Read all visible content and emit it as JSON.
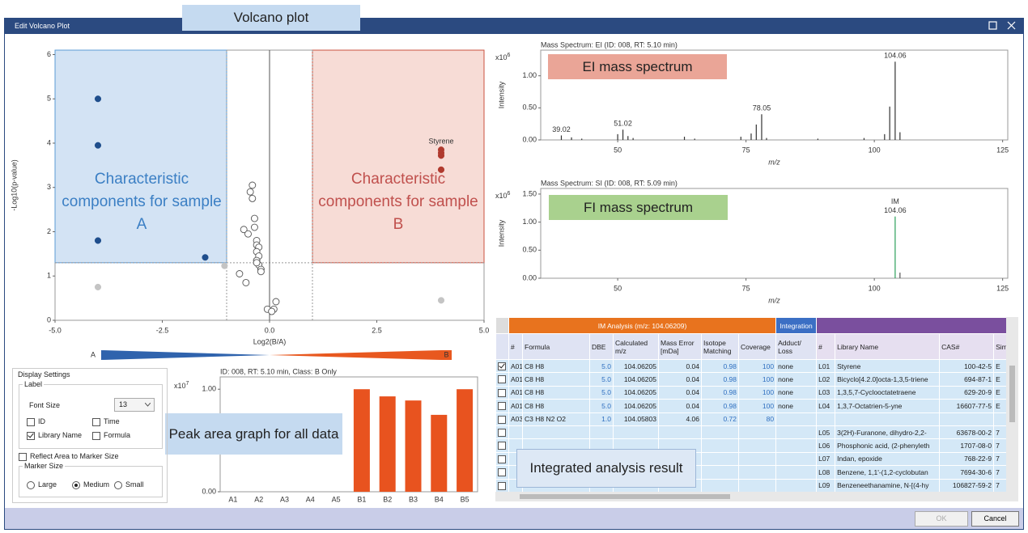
{
  "window": {
    "title": "Edit Volcano Plot"
  },
  "annotations": {
    "volcano": "Volcano plot",
    "ei": "EI mass spectrum",
    "fi": "FI mass spectrum",
    "sample_a": "Characteristic components for sample A",
    "sample_b": "Characteristic components for sample B",
    "peak_area": "Peak area graph for all data",
    "table": "Integrated analysis result"
  },
  "chart_data": [
    {
      "type": "scatter",
      "xlabel": "Log2(B/A)",
      "ylabel": "-Log10(p-value)",
      "xlim": [
        -5,
        5
      ],
      "ylim": [
        0,
        6.1
      ],
      "xticks": [
        {
          "value": -5,
          "label": "-5.0"
        },
        {
          "value": -2.5,
          "label": "-2.5"
        },
        {
          "value": 0,
          "label": "0.0"
        },
        {
          "value": 2.5,
          "label": "2.5"
        },
        {
          "value": 5,
          "label": "5.0"
        }
      ],
      "yticks": [
        0,
        1,
        2,
        3,
        4,
        5,
        6
      ],
      "thresholds": {
        "x": [
          -1,
          1
        ],
        "y": 1.3
      },
      "regions": [
        {
          "fill": "#d3e3f4",
          "stroke": "#5b9bd5"
        },
        {
          "fill": "#f7dcd6",
          "stroke": "#c9503f"
        }
      ],
      "gradient": {
        "start": "A",
        "end": "B",
        "colors": [
          "#2f63ad",
          "#e8581f"
        ]
      },
      "series": [
        {
          "color": "#1f4e8c",
          "filled": true,
          "x": [
            -4,
            -4,
            -4,
            -1.5
          ],
          "values": [
            5.0,
            3.95,
            1.8,
            1.42
          ]
        },
        {
          "color": "#c4c4c4",
          "filled": true,
          "x": [
            -4,
            -1.05,
            4
          ],
          "values": [
            0.75,
            1.23,
            0.45
          ]
        },
        {
          "color": "#b03a2e",
          "filled": true,
          "x": [
            4,
            4,
            4,
            4
          ],
          "values": [
            3.85,
            3.78,
            3.72,
            3.4
          ],
          "labels": [
            "Styrene",
            null,
            null,
            null
          ]
        },
        {
          "color": "#555555",
          "filled": false,
          "x": [
            -0.4,
            -0.45,
            -0.4,
            -0.35,
            -0.6,
            -0.35,
            -0.5,
            -0.3,
            -0.3,
            -0.25,
            -0.3,
            -0.25,
            -0.3,
            -0.25,
            -0.2,
            -0.7,
            -0.55,
            -0.3,
            -0.2,
            0.15,
            0.1,
            -0.05,
            0.05
          ],
          "values": [
            3.05,
            2.9,
            2.75,
            2.3,
            2.05,
            2.1,
            1.95,
            1.8,
            1.7,
            1.65,
            1.55,
            1.45,
            1.35,
            1.25,
            1.15,
            1.05,
            0.85,
            1.3,
            1.1,
            0.42,
            0.25,
            0.25,
            0.2
          ]
        }
      ]
    },
    {
      "type": "stem",
      "title": "Mass Spectrum: EI (ID: 008, RT: 5.10 min)",
      "xlabel": "m/z",
      "ylabel": "Intensity",
      "multiplier": {
        "base": "x10",
        "exponent": 6
      },
      "xlim": [
        35,
        126
      ],
      "ylim": [
        0,
        1.4
      ],
      "xticks": [
        50,
        75,
        100,
        125
      ],
      "yticks": [
        {
          "value": 0,
          "label": "0.00"
        },
        {
          "value": 0.5,
          "label": "0.50"
        },
        {
          "value": 1,
          "label": "1.00"
        }
      ],
      "series": [
        {
          "color": "#333333",
          "x": [
            39.02,
            41,
            43,
            50,
            51.02,
            52,
            53,
            63,
            65,
            74,
            76,
            77,
            78.05,
            79,
            89,
            98,
            102,
            103,
            104.06,
            105
          ],
          "values": [
            0.07,
            0.04,
            0.02,
            0.09,
            0.16,
            0.06,
            0.03,
            0.05,
            0.02,
            0.05,
            0.1,
            0.24,
            0.4,
            0.03,
            0.02,
            0.03,
            0.09,
            0.52,
            1.22,
            0.12
          ]
        }
      ],
      "peak_labels": [
        39.02,
        51.02,
        78.05,
        104.06
      ],
      "label_color": "#333333"
    },
    {
      "type": "stem",
      "title": "Mass Spectrum: SI (ID: 008, RT: 5.09 min)",
      "xlabel": "m/z",
      "ylabel": "Intensity",
      "multiplier": {
        "base": "x10",
        "exponent": 6
      },
      "xlim": [
        35,
        126
      ],
      "ylim": [
        0,
        1.6
      ],
      "xticks": [
        50,
        75,
        100,
        125
      ],
      "yticks": [
        {
          "value": 0,
          "label": "0.00"
        },
        {
          "value": 0.5,
          "label": "0.50"
        },
        {
          "value": 1,
          "label": "1.00"
        },
        {
          "value": 1.5,
          "label": "1.50"
        }
      ],
      "series": [
        {
          "color": "#2ca05a",
          "x": [
            104.06
          ],
          "values": [
            1.1
          ]
        },
        {
          "color": "#555555",
          "x": [
            105
          ],
          "values": [
            0.1
          ]
        }
      ],
      "peak_labels": [
        104.06
      ],
      "peak_tags": [
        "IM"
      ],
      "label_color": "#3b6fc4"
    },
    {
      "type": "bar",
      "title": "ID: 008, RT: 5.10 min, Class: B Only",
      "multiplier": {
        "base": "x10",
        "exponent": 7
      },
      "categories": [
        "A1",
        "A2",
        "A3",
        "A4",
        "A5",
        "B1",
        "B2",
        "B3",
        "B4",
        "B5"
      ],
      "values": [
        0,
        0,
        0,
        0,
        0,
        1.0,
        0.93,
        0.89,
        0.75,
        1.0
      ],
      "color": "#e8531f",
      "ylim": [
        0,
        1.12
      ],
      "yticks": [
        {
          "value": 0,
          "label": "0.00"
        },
        {
          "value": 1,
          "label": "1.00"
        }
      ]
    }
  ],
  "settings": {
    "title": "Display Settings",
    "label_group": "Label",
    "font_size_label": "Font Size",
    "font_size": 13,
    "checkboxes": [
      {
        "label": "ID",
        "checked": false
      },
      {
        "label": "Time",
        "checked": false
      },
      {
        "label": "Library Name",
        "checked": true
      },
      {
        "label": "Formula",
        "checked": false
      }
    ],
    "reflect": {
      "label": "Reflect Area to Marker Size",
      "checked": false
    },
    "marker_group": "Marker Size",
    "radios": [
      {
        "label": "Large",
        "selected": false
      },
      {
        "label": "Medium",
        "selected": true
      },
      {
        "label": "Small",
        "selected": false
      }
    ]
  },
  "table": {
    "groups": [
      {
        "label": "IM Analysis (m/z: 104.06209)",
        "color": "#e8731e"
      },
      {
        "label": "Integration",
        "color": "#3b6fc4"
      },
      {
        "color": "#7a4f9e"
      }
    ],
    "columns": [
      "#",
      "Formula",
      "DBE",
      "Calculated m/z",
      "Mass Error [mDa]",
      "Isotope Matching",
      "Coverage",
      "Adduct/ Loss",
      "#",
      "Library Name",
      "CAS#",
      "Sim"
    ],
    "rows": [
      {
        "checked": true,
        "cells": [
          "A01",
          "C8 H8",
          "5.0",
          "104.06205",
          "0.04",
          "0.98",
          "100",
          "none",
          "L01",
          "Styrene",
          "100-42-5",
          "E"
        ]
      },
      {
        "checked": false,
        "cells": [
          "A01",
          "C8 H8",
          "5.0",
          "104.06205",
          "0.04",
          "0.98",
          "100",
          "none",
          "L02",
          "Bicyclo[4.2.0]octa-1,3,5-triene",
          "694-87-1",
          "E"
        ]
      },
      {
        "checked": false,
        "cells": [
          "A01",
          "C8 H8",
          "5.0",
          "104.06205",
          "0.04",
          "0.98",
          "100",
          "none",
          "L03",
          "1,3,5,7-Cyclooctatetraene",
          "629-20-9",
          "E"
        ]
      },
      {
        "checked": false,
        "cells": [
          "A01",
          "C8 H8",
          "5.0",
          "104.06205",
          "0.04",
          "0.98",
          "100",
          "none",
          "L04",
          "1,3,7-Octatrien-5-yne",
          "16607-77-5",
          "E"
        ]
      },
      {
        "checked": false,
        "cells": [
          "A03",
          "C3 H8 N2 O2",
          "1.0",
          "104.05803",
          "4.06",
          "0.72",
          "80",
          null,
          null,
          null,
          null,
          null
        ]
      },
      {
        "checked": false,
        "cells": [
          null,
          null,
          null,
          null,
          null,
          null,
          null,
          null,
          "L05",
          "3(2H)-Furanone, dihydro-2,2-",
          "63678-00-2",
          "7"
        ]
      },
      {
        "checked": false,
        "cells": [
          null,
          null,
          null,
          null,
          null,
          null,
          null,
          null,
          "L06",
          "Phosphonic acid, (2-phenyleth",
          "1707-08-0",
          "7"
        ]
      },
      {
        "checked": false,
        "cells": [
          null,
          null,
          null,
          null,
          null,
          null,
          null,
          null,
          "L07",
          "Indan, epoxide",
          "768-22-9",
          "7"
        ]
      },
      {
        "checked": false,
        "cells": [
          null,
          null,
          null,
          null,
          null,
          null,
          null,
          null,
          "L08",
          "Benzene, 1,1'-(1,2-cyclobutan",
          "7694-30-6",
          "7"
        ]
      },
      {
        "checked": false,
        "cells": [
          null,
          null,
          null,
          null,
          null,
          null,
          null,
          null,
          "L09",
          "Benzeneethanamine, N-[(4-hy",
          "106827-59-2",
          "7"
        ]
      }
    ]
  },
  "buttons": [
    "OK",
    "Cancel"
  ]
}
